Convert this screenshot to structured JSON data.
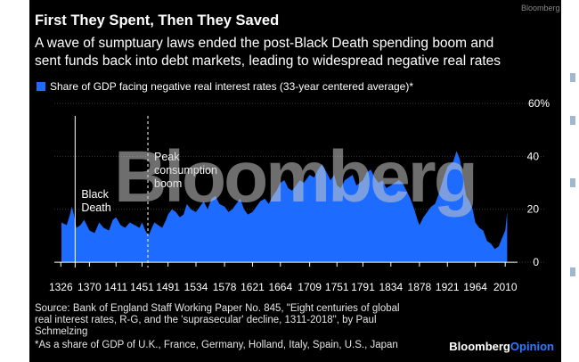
{
  "title": "First They Spent, Then They Saved",
  "subtitle_lines": [
    "A wave of sumptuary laws ended the post-Black Death spending boom and",
    "sent funds back into debt markets, leading to widespread negative real rates"
  ],
  "corner_label": "Bloomberg",
  "watermark": "Bloomberg",
  "source_lines": [
    "Source: Bank of England Staff Working Paper No. 845, \"Eight centuries of global",
    "real interest rates, R-G, and the 'suprasecular' decline, 1311-2018\", by Paul",
    "Schmelzing"
  ],
  "footnote": "*As a share of GDP of U.K., France, Germany, Holland, Italy, Spain, U.S., Japan",
  "brand": {
    "main": "Bloomberg",
    "accent": "Opinion"
  },
  "colors": {
    "series": "#1e6bff",
    "background": "#000000",
    "text": "#ffffff"
  },
  "chart_data": {
    "type": "area",
    "title": "First They Spent, Then They Saved",
    "legend": "Share of GDP facing negative real interest rates (33-year centered average)*",
    "x_ticks": [
      1326,
      1370,
      1411,
      1451,
      1491,
      1534,
      1578,
      1621,
      1664,
      1709,
      1751,
      1791,
      1834,
      1878,
      1921,
      1964,
      2010
    ],
    "y_ticks": [
      0,
      20,
      40
    ],
    "y_top_label": "60%",
    "xlim": [
      1316,
      2018
    ],
    "ylim": [
      -2,
      60
    ],
    "grid": true,
    "annotations": [
      {
        "year": 1348,
        "lines": [
          "Black",
          "Death"
        ]
      },
      {
        "year": 1460,
        "lines": [
          "Peak",
          "consumption",
          "boom"
        ]
      }
    ],
    "series": [
      {
        "name": "Share of GDP facing negative real interest rates (33-year centered average)*",
        "x": [
          1327,
          1335,
          1340,
          1343,
          1346,
          1350,
          1356,
          1362,
          1370,
          1378,
          1385,
          1392,
          1400,
          1406,
          1411,
          1418,
          1425,
          1432,
          1440,
          1447,
          1451,
          1456,
          1461,
          1466,
          1470,
          1476,
          1482,
          1488,
          1491,
          1497,
          1503,
          1509,
          1515,
          1520,
          1526,
          1534,
          1540,
          1546,
          1552,
          1558,
          1564,
          1570,
          1578,
          1584,
          1590,
          1596,
          1602,
          1608,
          1614,
          1621,
          1627,
          1633,
          1640,
          1646,
          1652,
          1658,
          1664,
          1670,
          1676,
          1682,
          1688,
          1694,
          1700,
          1709,
          1716,
          1722,
          1728,
          1735,
          1741,
          1747,
          1751,
          1757,
          1763,
          1769,
          1775,
          1781,
          1786,
          1791,
          1797,
          1803,
          1809,
          1815,
          1821,
          1827,
          1834,
          1840,
          1846,
          1852,
          1858,
          1864,
          1870,
          1875,
          1878,
          1884,
          1890,
          1896,
          1902,
          1908,
          1914,
          1918,
          1921,
          1925,
          1930,
          1935,
          1940,
          1945,
          1950,
          1955,
          1960,
          1964,
          1970,
          1976,
          1982,
          1988,
          1994,
          2000,
          2005,
          2010,
          2013
        ],
        "values": [
          15,
          14,
          18,
          21,
          18,
          13,
          14,
          16,
          12,
          11,
          15,
          13,
          12,
          16,
          17,
          14,
          13,
          15,
          14,
          13,
          15,
          12,
          10,
          13,
          15,
          14,
          13,
          16,
          18,
          20,
          19,
          17,
          18,
          22,
          20,
          19,
          21,
          23,
          20,
          24,
          25,
          22,
          21,
          19,
          20,
          22,
          24,
          20,
          18,
          19,
          21,
          23,
          24,
          22,
          25,
          27,
          30,
          31,
          28,
          27,
          29,
          31,
          30,
          33,
          32,
          35,
          37,
          34,
          31,
          33,
          29,
          28,
          31,
          32,
          33,
          29,
          30,
          31,
          34,
          35,
          32,
          30,
          31,
          28,
          29,
          30,
          31,
          30,
          27,
          24,
          20,
          16,
          14,
          17,
          19,
          21,
          22,
          26,
          31,
          34,
          36,
          37,
          38,
          42,
          39,
          32,
          25,
          23,
          20,
          15,
          13,
          12,
          8,
          7,
          5,
          6,
          9,
          12,
          19
        ]
      }
    ]
  }
}
